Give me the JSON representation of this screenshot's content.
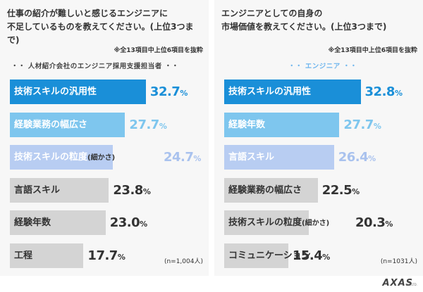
{
  "chart_data": [
    {
      "type": "bar",
      "orientation": "horizontal",
      "title": "仕事の紹介が難しいと感じるエンジニアに\n不足しているものを教えてください。(上位3つまで)",
      "note": "※全13項目中上位6項目を抜粋",
      "subtitle": "・・ 人材紹介会社のエンジニア採用支援担当者 ・・",
      "sample": "(n=1,004人)",
      "categories": [
        "技術スキルの汎用性",
        "経験業務の幅広さ",
        "技術スキルの粒度(細かさ)",
        "言語スキル",
        "経験年数",
        "工程"
      ],
      "values": [
        32.7,
        27.7,
        24.7,
        23.8,
        23.0,
        17.7
      ],
      "value_labels": [
        "32.7",
        "27.7",
        "24.7",
        "23.8",
        "23.0",
        "17.7"
      ],
      "colors": [
        "#1a8fd8",
        "#7ec6ee",
        "#b8cdf2",
        "#d4d4d4",
        "#d4d4d4",
        "#d4d4d4"
      ]
    },
    {
      "type": "bar",
      "orientation": "horizontal",
      "title": "エンジニアとしての自身の\n市場価値を教えてください。(上位3つまで)",
      "note": "※全13項目中上位6項目を抜粋",
      "subtitle": "・・ エンジニア ・・",
      "sample": "(n=1031人)",
      "categories": [
        "技術スキルの汎用性",
        "経験年数",
        "言語スキル",
        "経験業務の幅広さ",
        "技術スキルの粒度(細かさ)",
        "コミュニケーション"
      ],
      "values": [
        32.8,
        27.7,
        26.4,
        22.5,
        20.3,
        15.4
      ],
      "value_labels": [
        "32.8",
        "27.7",
        "26.4",
        "22.5",
        "20.3",
        "15.4"
      ],
      "colors": [
        "#1a8fd8",
        "#7ec6ee",
        "#b8cdf2",
        "#d4d4d4",
        "#d4d4d4",
        "#d4d4d4"
      ]
    }
  ],
  "percent_unit": "%",
  "logo": {
    "main": "AXAS",
    "sub": "CO.,LTD."
  }
}
